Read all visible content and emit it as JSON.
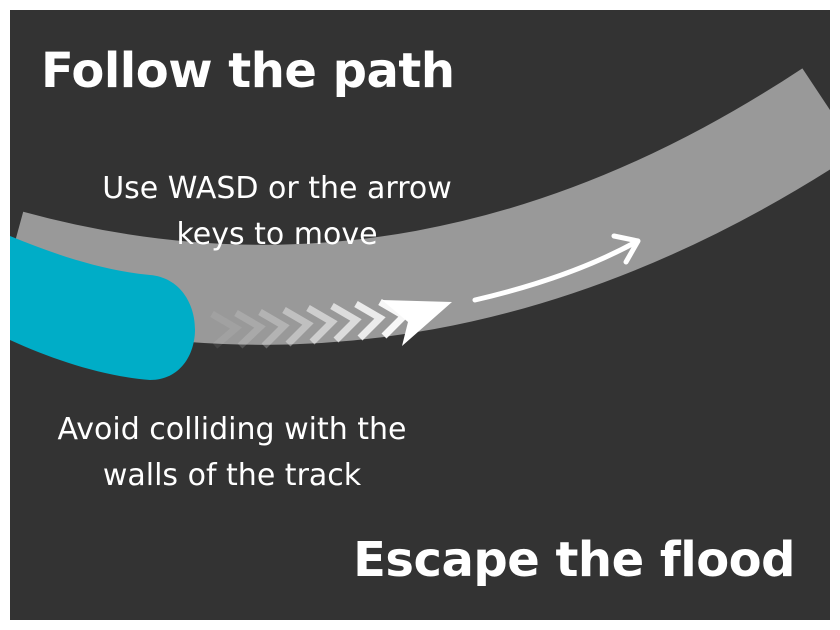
{
  "title": "Follow the path",
  "subtitle": "Escape the flood",
  "hints": {
    "move": "Use WASD or the arrow keys to move",
    "walls": "Avoid colliding with the walls of the track"
  },
  "colors": {
    "background": "#333333",
    "track": "#999999",
    "flood": "#00adc7",
    "text": "#ffffff"
  },
  "icons": {
    "chevron_trail": "chevron-right-icon",
    "direction": "arrow-right-icon"
  }
}
